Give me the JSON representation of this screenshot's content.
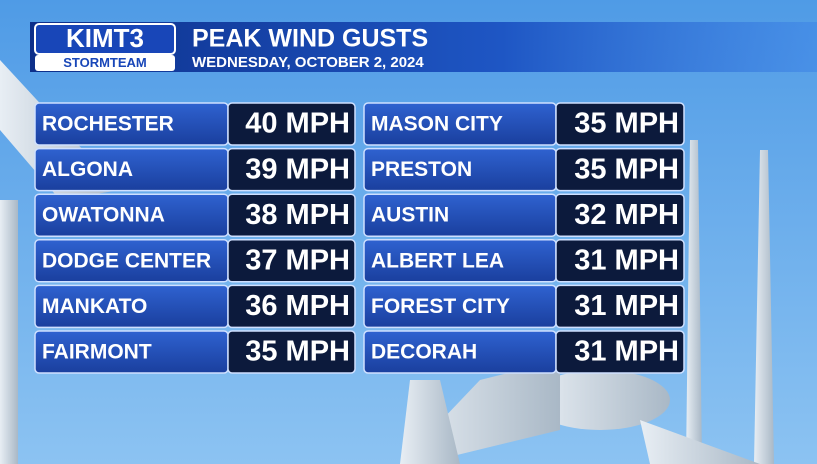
{
  "header": {
    "logo": "KIMT3",
    "logo_sub": "STORMTEAM",
    "title": "PEAK WIND GUSTS",
    "subtitle": "WEDNESDAY, OCTOBER 2, 2024"
  },
  "columns": [
    {
      "rows": [
        {
          "city": "ROCHESTER",
          "gust": "40 MPH"
        },
        {
          "city": "ALGONA",
          "gust": "39 MPH"
        },
        {
          "city": "OWATONNA",
          "gust": "38 MPH"
        },
        {
          "city": "DODGE CENTER",
          "gust": "37 MPH"
        },
        {
          "city": "MANKATO",
          "gust": "36 MPH"
        },
        {
          "city": "FAIRMONT",
          "gust": "35 MPH"
        }
      ]
    },
    {
      "rows": [
        {
          "city": "MASON CITY",
          "gust": "35 MPH"
        },
        {
          "city": "PRESTON",
          "gust": "35 MPH"
        },
        {
          "city": "AUSTIN",
          "gust": "32 MPH"
        },
        {
          "city": "ALBERT LEA",
          "gust": "31 MPH"
        },
        {
          "city": "FOREST CITY",
          "gust": "31 MPH"
        },
        {
          "city": "DECORAH",
          "gust": "31 MPH"
        }
      ]
    }
  ]
}
